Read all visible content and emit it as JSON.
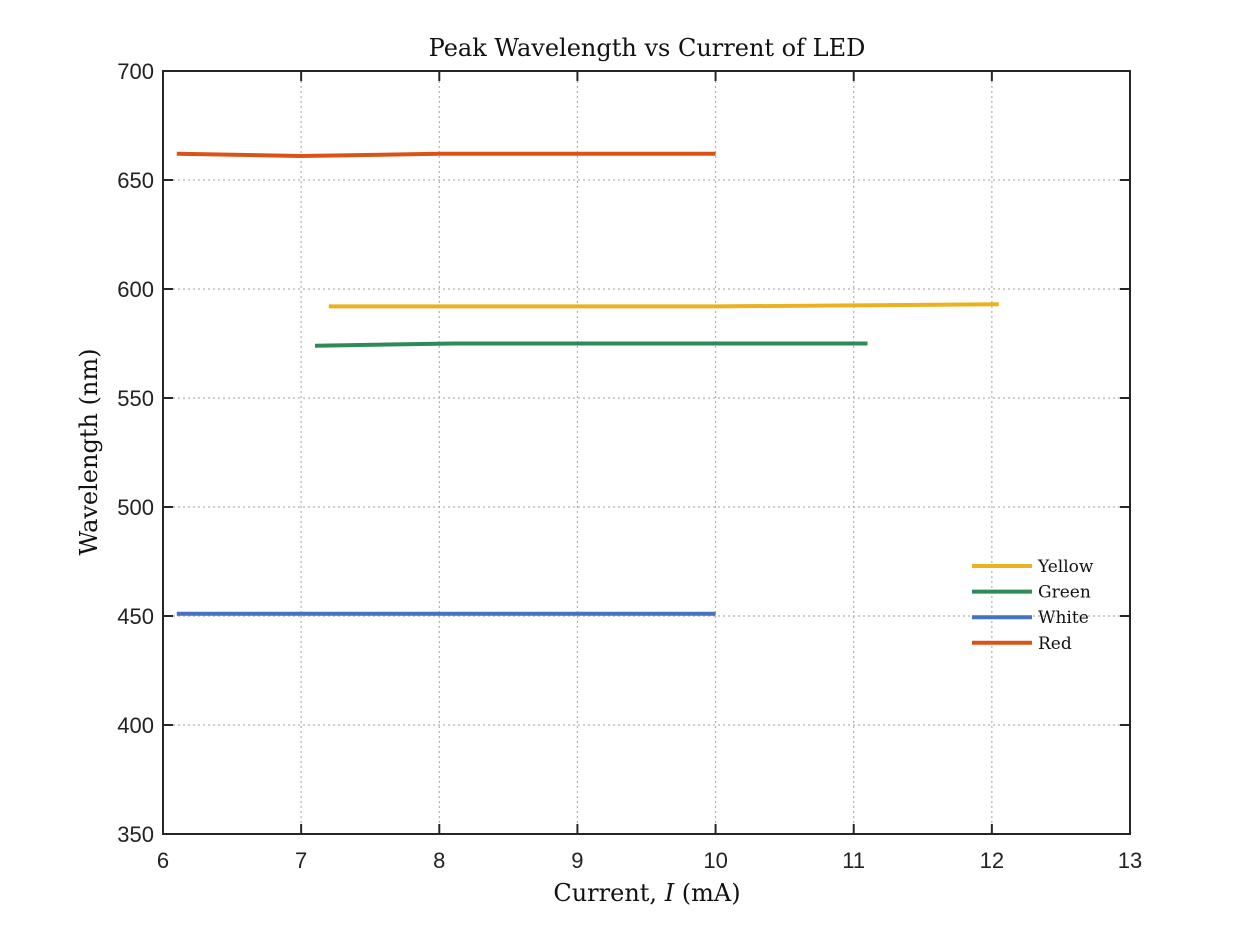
{
  "chart_data": {
    "type": "line",
    "title": "Peak Wavelength vs Current of LED",
    "xlabel_prefix": "Current, ",
    "xlabel_var": "I",
    "xlabel_suffix": " (mA)",
    "ylabel": "Wavelength (nm)",
    "xlim": [
      6,
      13
    ],
    "ylim": [
      350,
      700
    ],
    "xticks": [
      6,
      7,
      8,
      9,
      10,
      11,
      12,
      13
    ],
    "yticks": [
      350,
      400,
      450,
      500,
      550,
      600,
      650,
      700
    ],
    "grid": true,
    "legend_position": "right",
    "series": [
      {
        "name": "Yellow",
        "color": "#EDB120",
        "x": [
          7.2,
          8.1,
          9.0,
          10.0,
          11.0,
          12.05
        ],
        "y": [
          592,
          592,
          592,
          592,
          592.5,
          593
        ]
      },
      {
        "name": "Green",
        "color": "#2E8B57",
        "x": [
          7.1,
          8.1,
          9.0,
          10.0,
          11.1
        ],
        "y": [
          574,
          575,
          575,
          575,
          575
        ]
      },
      {
        "name": "White",
        "color": "#4472C4",
        "x": [
          6.1,
          7.0,
          8.0,
          9.0,
          10.0
        ],
        "y": [
          451,
          451,
          451,
          451,
          451
        ]
      },
      {
        "name": "Red",
        "color": "#D95319",
        "x": [
          6.1,
          7.0,
          8.0,
          9.0,
          10.0
        ],
        "y": [
          662,
          661,
          662,
          662,
          662
        ]
      }
    ]
  }
}
